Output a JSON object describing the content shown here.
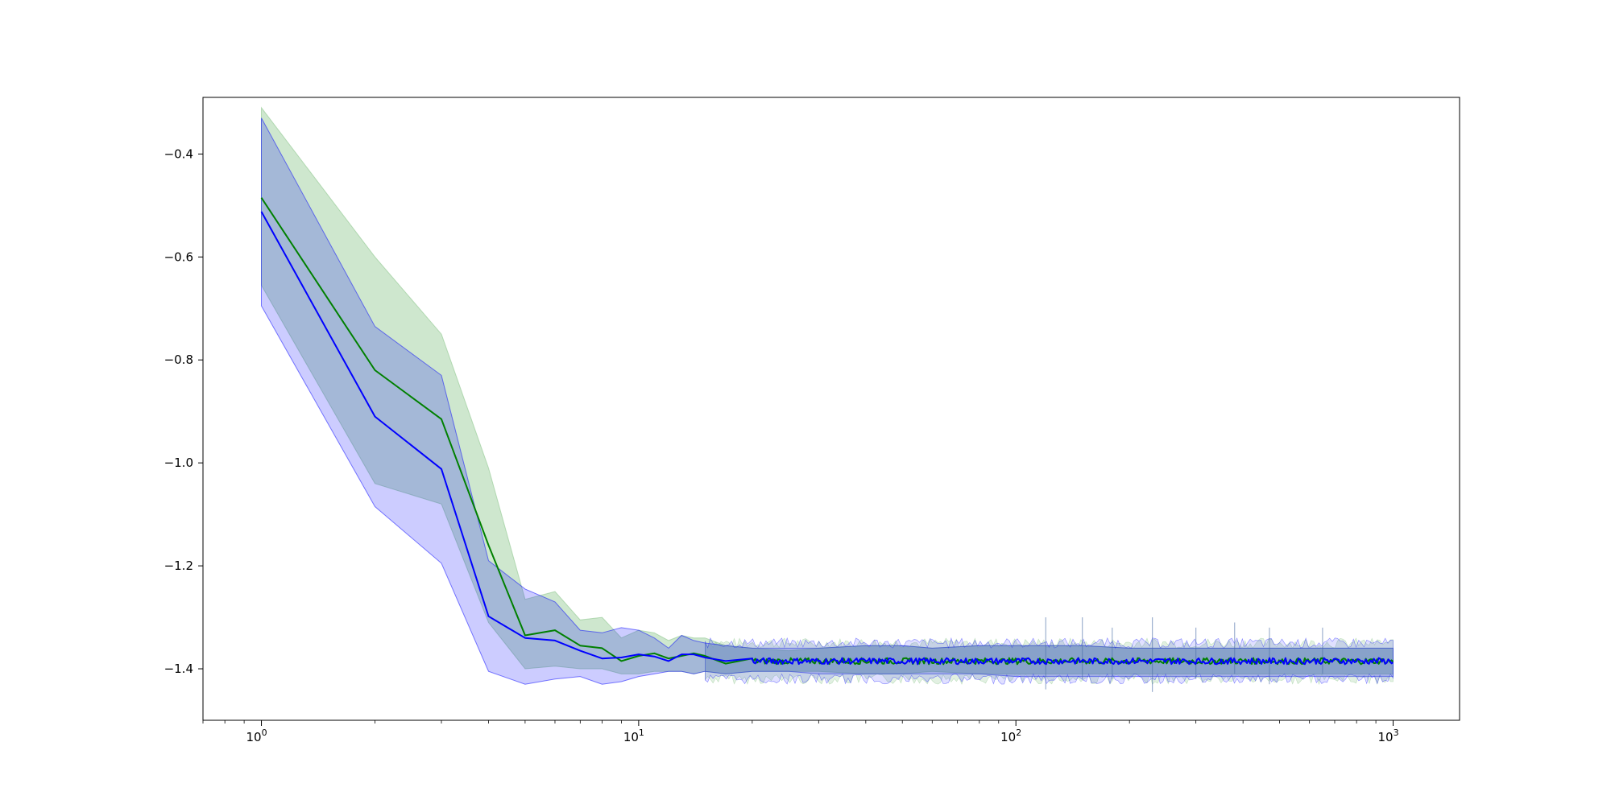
{
  "chart_data": {
    "type": "line",
    "title": "",
    "xlabel": "",
    "ylabel": "",
    "xscale": "log",
    "xlim": [
      0.7,
      1500
    ],
    "ylim": [
      -1.5,
      -0.29
    ],
    "grid": false,
    "legend": "none",
    "x_ticks": [
      {
        "value": 1,
        "base": "10",
        "exp": "0"
      },
      {
        "value": 10,
        "base": "10",
        "exp": "1"
      },
      {
        "value": 100,
        "base": "10",
        "exp": "2"
      },
      {
        "value": 1000,
        "base": "10",
        "exp": "3"
      }
    ],
    "y_ticks": [
      {
        "value": -0.4,
        "label": "−0.4"
      },
      {
        "value": -0.6,
        "label": "−0.6"
      },
      {
        "value": -0.8,
        "label": "−0.8"
      },
      {
        "value": -1.0,
        "label": "−1.0"
      },
      {
        "value": -1.2,
        "label": "−1.2"
      },
      {
        "value": -1.4,
        "label": "−1.4"
      }
    ],
    "x": [
      1,
      2,
      3,
      4,
      5,
      6,
      7,
      8,
      9,
      10,
      11,
      12,
      13,
      14,
      15,
      17,
      20,
      25,
      30,
      40,
      50,
      60,
      80,
      100,
      150,
      200,
      300,
      500,
      700,
      1000
    ],
    "series": [
      {
        "color": "#008000",
        "band_color": "#7fbf7f",
        "band_opacity": 0.38,
        "values": [
          -0.485,
          -0.82,
          -0.915,
          -1.16,
          -1.335,
          -1.325,
          -1.355,
          -1.36,
          -1.385,
          -1.375,
          -1.37,
          -1.38,
          -1.375,
          -1.37,
          -1.375,
          -1.39,
          -1.38,
          -1.385,
          -1.385,
          -1.38,
          -1.385,
          -1.38,
          -1.385,
          -1.385,
          -1.382,
          -1.385,
          -1.385,
          -1.385,
          -1.385,
          -1.385
        ],
        "upper": [
          -0.31,
          -0.6,
          -0.75,
          -1.01,
          -1.265,
          -1.25,
          -1.305,
          -1.3,
          -1.34,
          -1.325,
          -1.33,
          -1.345,
          -1.335,
          -1.34,
          -1.34,
          -1.355,
          -1.36,
          -1.365,
          -1.36,
          -1.355,
          -1.355,
          -1.36,
          -1.355,
          -1.355,
          -1.355,
          -1.36,
          -1.36,
          -1.36,
          -1.36,
          -1.36
        ],
        "lower": [
          -0.655,
          -1.04,
          -1.08,
          -1.31,
          -1.4,
          -1.395,
          -1.4,
          -1.4,
          -1.41,
          -1.41,
          -1.405,
          -1.405,
          -1.405,
          -1.41,
          -1.405,
          -1.41,
          -1.405,
          -1.405,
          -1.405,
          -1.41,
          -1.41,
          -1.405,
          -1.41,
          -1.41,
          -1.41,
          -1.41,
          -1.41,
          -1.41,
          -1.41,
          -1.41
        ]
      },
      {
        "color": "#0000ff",
        "band_color": "#0000ff",
        "band_opacity": 0.2,
        "values": [
          -0.512,
          -0.91,
          -1.012,
          -1.298,
          -1.34,
          -1.345,
          -1.365,
          -1.38,
          -1.378,
          -1.372,
          -1.376,
          -1.385,
          -1.372,
          -1.372,
          -1.378,
          -1.385,
          -1.38,
          -1.385,
          -1.385,
          -1.38,
          -1.385,
          -1.385,
          -1.385,
          -1.385,
          -1.382,
          -1.385,
          -1.385,
          -1.385,
          -1.385,
          -1.385
        ],
        "upper": [
          -0.33,
          -0.735,
          -0.83,
          -1.19,
          -1.245,
          -1.27,
          -1.325,
          -1.33,
          -1.32,
          -1.325,
          -1.34,
          -1.36,
          -1.335,
          -1.345,
          -1.35,
          -1.355,
          -1.36,
          -1.36,
          -1.36,
          -1.355,
          -1.355,
          -1.36,
          -1.355,
          -1.355,
          -1.355,
          -1.36,
          -1.36,
          -1.36,
          -1.36,
          -1.36
        ],
        "lower": [
          -0.695,
          -1.085,
          -1.195,
          -1.405,
          -1.43,
          -1.42,
          -1.415,
          -1.43,
          -1.425,
          -1.415,
          -1.41,
          -1.405,
          -1.405,
          -1.41,
          -1.405,
          -1.41,
          -1.405,
          -1.405,
          -1.41,
          -1.41,
          -1.41,
          -1.41,
          -1.41,
          -1.415,
          -1.415,
          -1.415,
          -1.415,
          -1.415,
          -1.415,
          -1.415
        ]
      }
    ],
    "spikes": [
      {
        "x": 120,
        "high": -1.3,
        "low": -1.44
      },
      {
        "x": 150,
        "high": -1.3,
        "low": -1.42
      },
      {
        "x": 180,
        "high": -1.32,
        "low": -1.42
      },
      {
        "x": 230,
        "high": -1.3,
        "low": -1.445
      },
      {
        "x": 300,
        "high": -1.32,
        "low": -1.42
      },
      {
        "x": 380,
        "high": -1.31,
        "low": -1.41
      },
      {
        "x": 470,
        "high": -1.32,
        "low": -1.43
      },
      {
        "x": 650,
        "high": -1.32,
        "low": -1.41
      }
    ]
  }
}
